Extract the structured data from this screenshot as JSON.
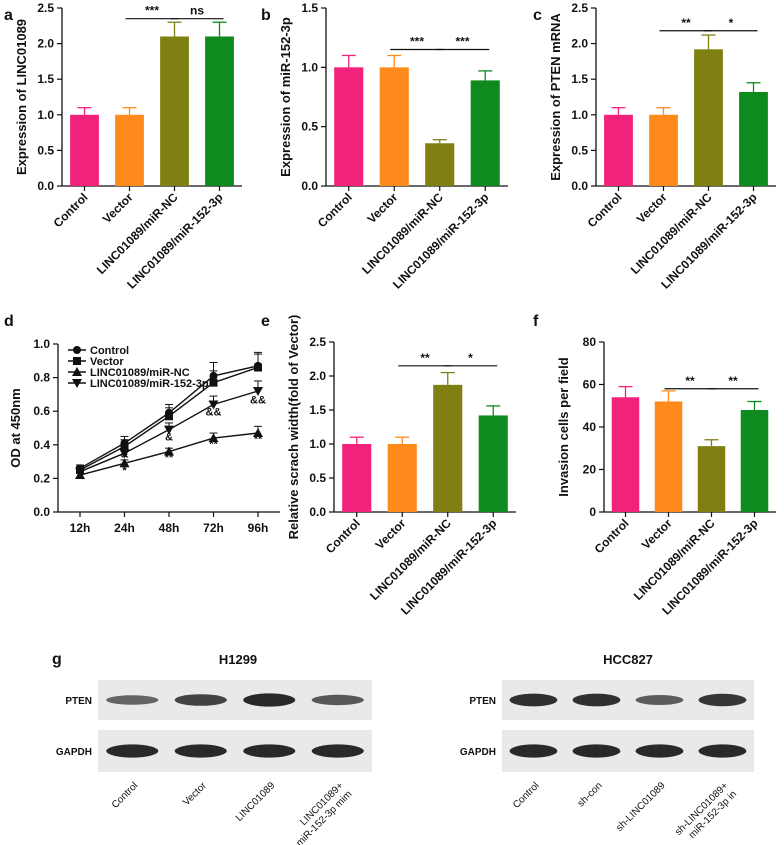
{
  "panels": {
    "a": "a",
    "b": "b",
    "c": "c",
    "d": "d",
    "e": "e",
    "f": "f",
    "g": "g"
  },
  "colors": {
    "control": "#f2217c",
    "vector": "#ff8a1c",
    "linc_mirnc": "#7f7f12",
    "linc_mir152": "#0f8a1e"
  },
  "chart_data": [
    {
      "id": "a",
      "type": "bar",
      "categories": [
        "Control",
        "Vector",
        "LINC01089/miR-NC",
        "LINC01089/miR-152-3p"
      ],
      "values": [
        1.0,
        1.0,
        2.1,
        2.1
      ],
      "errors": [
        0.1,
        0.1,
        0.2,
        0.2
      ],
      "ylabel": "Expression of LINC01089",
      "ylim": [
        0,
        2.5
      ],
      "yticks": [
        "0.0",
        "0.5",
        "1.0",
        "1.5",
        "2.0",
        "2.5"
      ],
      "tickvals": [
        0,
        0.5,
        1.0,
        1.5,
        2.0,
        2.5
      ],
      "sig": [
        {
          "from": 1,
          "to": 2,
          "label": "***",
          "y": 2.35
        },
        {
          "from": 2,
          "to": 3,
          "label": "ns",
          "y": 2.35
        }
      ]
    },
    {
      "id": "b",
      "type": "bar",
      "categories": [
        "Control",
        "Vector",
        "LINC01089/miR-NC",
        "LINC01089/miR-152-3p"
      ],
      "values": [
        1.0,
        1.0,
        0.36,
        0.89
      ],
      "errors": [
        0.1,
        0.1,
        0.03,
        0.08
      ],
      "ylabel": "Expression of miR-152-3p",
      "ylim": [
        0,
        1.5
      ],
      "yticks": [
        "0.0",
        "0.5",
        "1.0",
        "1.5"
      ],
      "tickvals": [
        0,
        0.5,
        1.0,
        1.5
      ],
      "sig": [
        {
          "from": 1,
          "to": 2,
          "label": "***",
          "y": 1.15
        },
        {
          "from": 2,
          "to": 3,
          "label": "***",
          "y": 1.15
        }
      ]
    },
    {
      "id": "c",
      "type": "bar",
      "categories": [
        "Control",
        "Vector",
        "LINC01089/miR-NC",
        "LINC01089/miR-152-3p"
      ],
      "values": [
        1.0,
        1.0,
        1.92,
        1.32
      ],
      "errors": [
        0.1,
        0.1,
        0.2,
        0.13
      ],
      "ylabel": "Expression of PTEN mRNA",
      "ylim": [
        0,
        2.5
      ],
      "yticks": [
        "0.0",
        "0.5",
        "1.0",
        "1.5",
        "2.0",
        "2.5"
      ],
      "tickvals": [
        0,
        0.5,
        1.0,
        1.5,
        2.0,
        2.5
      ],
      "sig": [
        {
          "from": 1,
          "to": 2,
          "label": "**",
          "y": 2.18
        },
        {
          "from": 2,
          "to": 3,
          "label": "*",
          "y": 2.18
        }
      ]
    },
    {
      "id": "d",
      "type": "line",
      "x": [
        "12h",
        "24h",
        "48h",
        "72h",
        "96h"
      ],
      "ylabel": "OD at 450nm",
      "ylim": [
        0,
        1.0
      ],
      "yticks": [
        "0.0",
        "0.2",
        "0.4",
        "0.6",
        "0.8",
        "1.0"
      ],
      "tickvals": [
        0,
        0.2,
        0.4,
        0.6,
        0.8,
        1.0
      ],
      "legend_position": "top-left",
      "series": [
        {
          "name": "Control",
          "marker": "circle",
          "values": [
            0.26,
            0.41,
            0.59,
            0.81,
            0.87
          ],
          "errors": [
            0.02,
            0.04,
            0.05,
            0.08,
            0.08
          ]
        },
        {
          "name": "Vector",
          "marker": "square",
          "values": [
            0.25,
            0.39,
            0.57,
            0.77,
            0.86
          ],
          "errors": [
            0.02,
            0.04,
            0.05,
            0.07,
            0.08
          ]
        },
        {
          "name": "LINC01089/miR-NC",
          "marker": "triangle-up",
          "values": [
            0.22,
            0.29,
            0.36,
            0.44,
            0.47
          ],
          "errors": [
            0.01,
            0.02,
            0.02,
            0.03,
            0.04
          ]
        },
        {
          "name": "LINC01089/miR-152-3p",
          "marker": "triangle-down",
          "values": [
            0.24,
            0.35,
            0.49,
            0.64,
            0.72
          ],
          "errors": [
            0.02,
            0.03,
            0.04,
            0.05,
            0.06
          ]
        }
      ],
      "annotations": [
        {
          "x": 1,
          "y": 0.225,
          "label": "*"
        },
        {
          "x": 2,
          "y": 0.305,
          "label": "**"
        },
        {
          "x": 3,
          "y": 0.385,
          "label": "**"
        },
        {
          "x": 4,
          "y": 0.415,
          "label": "**"
        },
        {
          "x": 1,
          "y": 0.325,
          "label": "&"
        },
        {
          "x": 2,
          "y": 0.425,
          "label": "&"
        },
        {
          "x": 3,
          "y": 0.575,
          "label": "&&"
        },
        {
          "x": 4,
          "y": 0.645,
          "label": "&&"
        }
      ]
    },
    {
      "id": "e",
      "type": "bar",
      "categories": [
        "Control",
        "Vector",
        "LINC01089/miR-NC",
        "LINC01089/miR-152-3p"
      ],
      "values": [
        1.0,
        1.0,
        1.87,
        1.42
      ],
      "errors": [
        0.1,
        0.1,
        0.18,
        0.14
      ],
      "ylabel": "Relative scrach width(fold of Vector)",
      "ylim": [
        0,
        2.5
      ],
      "yticks": [
        "0.0",
        "0.5",
        "1.0",
        "1.5",
        "2.0",
        "2.5"
      ],
      "tickvals": [
        0,
        0.5,
        1.0,
        1.5,
        2.0,
        2.5
      ],
      "sig": [
        {
          "from": 1,
          "to": 2,
          "label": "**",
          "y": 2.15
        },
        {
          "from": 2,
          "to": 3,
          "label": "*",
          "y": 2.15
        }
      ]
    },
    {
      "id": "f",
      "type": "bar",
      "categories": [
        "Control",
        "Vector",
        "LINC01089/miR-NC",
        "LINC01089/miR-152-3p"
      ],
      "values": [
        54,
        52,
        31,
        48
      ],
      "errors": [
        5,
        5,
        3,
        4
      ],
      "ylabel": "Invasion cells per field",
      "ylim": [
        0,
        80
      ],
      "yticks": [
        "0",
        "20",
        "40",
        "60",
        "80"
      ],
      "tickvals": [
        0,
        20,
        40,
        60,
        80
      ],
      "sig": [
        {
          "from": 1,
          "to": 2,
          "label": "**",
          "y": 58
        },
        {
          "from": 2,
          "to": 3,
          "label": "**",
          "y": 58
        }
      ]
    }
  ],
  "blots": {
    "left": {
      "title": "H1299",
      "rows": [
        "PTEN",
        "GAPDH"
      ],
      "lanes": [
        "Control",
        "Vector",
        "LINC01089",
        "LINC01089+\nmiR-152-3p mim"
      ],
      "pten_intensity": [
        0.45,
        0.7,
        0.9,
        0.55
      ],
      "gapdh_intensity": [
        0.9,
        0.9,
        0.9,
        0.9
      ]
    },
    "right": {
      "title": "HCC827",
      "rows": [
        "PTEN",
        "GAPDH"
      ],
      "lanes": [
        "Control",
        "sh-con",
        "sh-LINC01089",
        "sh-LINC01089+\nmiR-152-3p in"
      ],
      "pten_intensity": [
        0.85,
        0.85,
        0.5,
        0.8
      ],
      "gapdh_intensity": [
        0.9,
        0.9,
        0.9,
        0.9
      ]
    }
  }
}
